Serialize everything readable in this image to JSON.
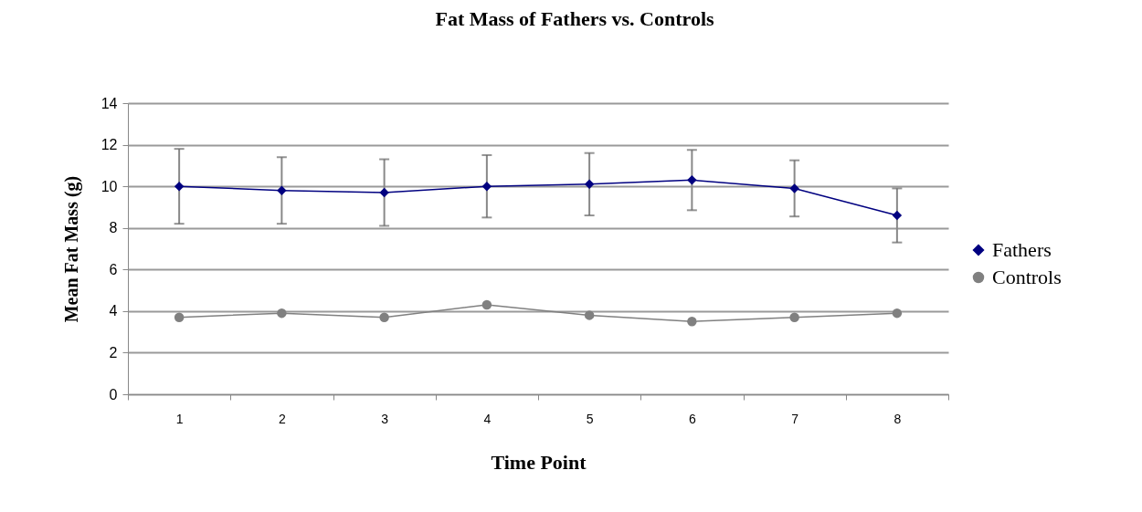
{
  "chart_data": {
    "type": "line",
    "title": "Fat Mass of Fathers vs. Controls",
    "xlabel": "Time Point",
    "ylabel": "Mean Fat Mass (g)",
    "categories": [
      "1",
      "2",
      "3",
      "4",
      "5",
      "6",
      "7",
      "8"
    ],
    "series": [
      {
        "name": "Fathers",
        "color": "#000080",
        "marker": "diamond",
        "values": [
          10.0,
          9.8,
          9.7,
          10.0,
          10.1,
          10.3,
          9.9,
          8.6
        ],
        "errors": [
          1.8,
          1.6,
          1.6,
          1.5,
          1.5,
          1.45,
          1.35,
          1.3
        ]
      },
      {
        "name": "Controls",
        "color": "#808080",
        "marker": "circle",
        "values": [
          3.7,
          3.9,
          3.7,
          4.3,
          3.8,
          3.5,
          3.7,
          3.9
        ]
      }
    ],
    "ylim": [
      0,
      14
    ],
    "yticks": [
      0,
      2,
      4,
      6,
      8,
      10,
      12,
      14
    ],
    "grid": "y",
    "legend": "right",
    "line_style": "solid"
  }
}
